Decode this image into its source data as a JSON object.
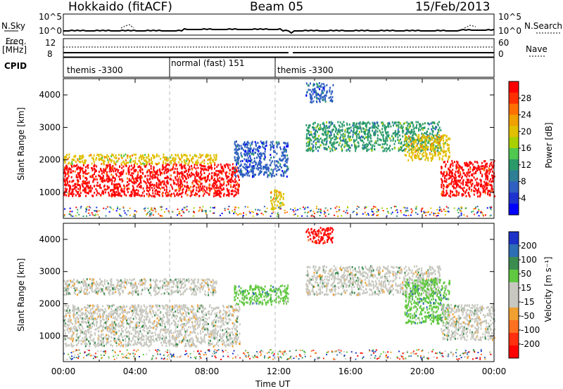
{
  "header": {
    "station": "Hokkaido (fitACF)",
    "beam": "Beam 05",
    "date": "15/Feb/2013"
  },
  "top_panels": {
    "nsky_label": "N.Sky",
    "nsky_ticks": [
      "10^5",
      "10^0"
    ],
    "nsky_right_ticks": [
      "10^5",
      "10^0"
    ],
    "nsearch_label": "N.Search",
    "freq_label": "Freq.",
    "freq_unit": "[MHz]",
    "freq_ticks": [
      "12",
      "8"
    ],
    "nave_label": "Nave",
    "nave_ticks": [
      "60",
      "0"
    ],
    "cpid_label": "CPID",
    "cpid_segments": [
      "themis -3300",
      "normal (fast) 151",
      "themis -3300"
    ]
  },
  "chart_data": [
    {
      "type": "heatmap",
      "name": "power",
      "ylabel": "Slant Range [km]",
      "xlim": [
        0,
        24
      ],
      "ylim": [
        200,
        4500
      ],
      "yticks": [
        "1000",
        "2000",
        "3000",
        "4000"
      ],
      "colorbar_label": "Power [dB]",
      "colorbar_ticks": [
        "28",
        "24",
        "20",
        "16",
        "12",
        "8",
        "4"
      ],
      "colorbar_colors": [
        "#ff0000",
        "#ff3000",
        "#ff7000",
        "#f0a000",
        "#e0c000",
        "#a8d000",
        "#50c850",
        "#2a9a6a",
        "#2e7e96",
        "#2f5fc0",
        "#1e32d0",
        "#0000ff"
      ],
      "regions": [
        {
          "x": [
            0,
            9.8
          ],
          "y": [
            900,
            1900
          ],
          "level": 28
        },
        {
          "x": [
            0,
            8.5
          ],
          "y": [
            1900,
            2200
          ],
          "level": 20
        },
        {
          "x": [
            9.5,
            12.5
          ],
          "y": [
            1500,
            2600
          ],
          "level": 8
        },
        {
          "x": [
            11.5,
            12.3
          ],
          "y": [
            500,
            1100
          ],
          "level": 20
        },
        {
          "x": [
            13.5,
            21
          ],
          "y": [
            2300,
            3200
          ],
          "level": 12
        },
        {
          "x": [
            19,
            21.5
          ],
          "y": [
            2000,
            2800
          ],
          "level": 20
        },
        {
          "x": [
            21,
            24
          ],
          "y": [
            900,
            2000
          ],
          "level": 28
        },
        {
          "x": [
            13.5,
            15
          ],
          "y": [
            3800,
            4400
          ],
          "level": 8
        }
      ]
    },
    {
      "type": "heatmap",
      "name": "velocity",
      "ylabel": "Slant Range [km]",
      "xlabel": "Time UT",
      "xlim": [
        0,
        24
      ],
      "ylim": [
        200,
        4500
      ],
      "x_tick_labels": [
        "00:00",
        "04:00",
        "08:00",
        "12:00",
        "16:00",
        "20:00",
        "00:00"
      ],
      "yticks": [
        "1000",
        "2000",
        "3000",
        "4000"
      ],
      "colorbar_label": "Velocity [m s⁻¹]",
      "colorbar_ticks": [
        "200",
        "100",
        "50",
        "15",
        "-15",
        "-50",
        "-100",
        "-200"
      ],
      "colorbar_colors": [
        "#1e32c8",
        "#2e6eb4",
        "#3c8c50",
        "#60c840",
        "#c8c8c0",
        "#c8c8c0",
        "#f0a030",
        "#ff7020",
        "#ff3010",
        "#ff0000"
      ],
      "regions": [
        {
          "x": [
            0,
            9.8
          ],
          "y": [
            700,
            2000
          ],
          "level": 0
        },
        {
          "x": [
            0,
            8.5
          ],
          "y": [
            2300,
            2800
          ],
          "level": 0
        },
        {
          "x": [
            9.5,
            12.5
          ],
          "y": [
            2000,
            2600
          ],
          "level": 50
        },
        {
          "x": [
            13.5,
            21
          ],
          "y": [
            2300,
            3200
          ],
          "level": 0
        },
        {
          "x": [
            19,
            21.5
          ],
          "y": [
            1400,
            2800
          ],
          "level": 50
        },
        {
          "x": [
            21,
            24
          ],
          "y": [
            900,
            2000
          ],
          "level": 0
        },
        {
          "x": [
            13.5,
            15
          ],
          "y": [
            3900,
            4400
          ],
          "level": -200
        }
      ]
    }
  ]
}
